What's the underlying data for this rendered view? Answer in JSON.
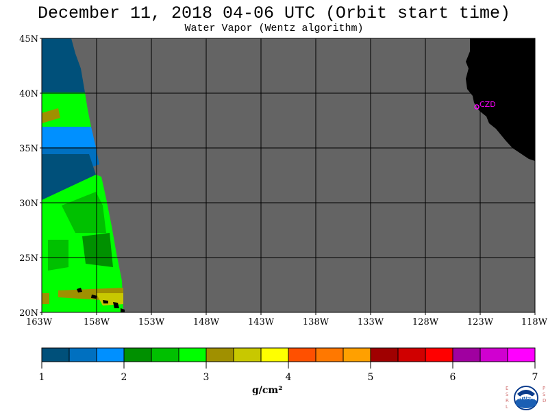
{
  "title": "December 11, 2018  04-06 UTC  (Orbit start time)",
  "subtitle": "Water Vapor (Wentz algorithm)",
  "map": {
    "lat_labels": [
      "45N",
      "40N",
      "35N",
      "30N",
      "25N",
      "20N"
    ],
    "lon_labels": [
      "163W",
      "158W",
      "153W",
      "148W",
      "143W",
      "138W",
      "133W",
      "128W",
      "123W",
      "118W"
    ],
    "station_label": "CZD",
    "colors": {
      "no_data": "#646464",
      "land": "#000000",
      "grid": "#000000",
      "station": "#ff00ff"
    }
  },
  "colorbar": {
    "colors": [
      "#00507a",
      "#0070c0",
      "#0090ff",
      "#009000",
      "#00c000",
      "#00ff00",
      "#a09000",
      "#c8c800",
      "#ffff00",
      "#ff5000",
      "#ff7800",
      "#ffa000",
      "#a00000",
      "#d00000",
      "#ff0000",
      "#a000a0",
      "#d000d0",
      "#ff00ff"
    ],
    "tick_labels": [
      "1",
      "2",
      "3",
      "4",
      "5",
      "6",
      "7"
    ],
    "units": "g/cm²"
  },
  "logo": {
    "center_text": "NOAA",
    "left_letters": "ESRL",
    "right_letters": "PSD"
  }
}
